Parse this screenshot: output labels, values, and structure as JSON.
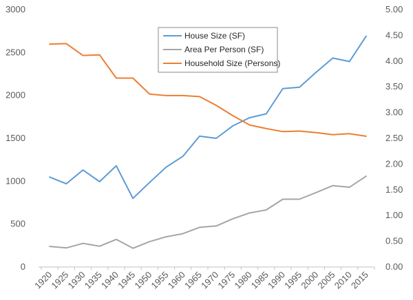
{
  "chart_data": {
    "type": "line",
    "title": "",
    "xlabel": "",
    "ylabel": "",
    "y2label": "",
    "x": [
      "1920",
      "1925",
      "1930",
      "1935",
      "1940",
      "1945",
      "1950",
      "1955",
      "1960",
      "1965",
      "1970",
      "1975",
      "1980",
      "1985",
      "1990",
      "1995",
      "2000",
      "2005",
      "2010",
      "2015"
    ],
    "ylim": [
      0,
      3000
    ],
    "y_ticks": [
      "0",
      "500",
      "1000",
      "1500",
      "2000",
      "2500",
      "3000"
    ],
    "y2lim": [
      0,
      5
    ],
    "y2_ticks": [
      "0.00",
      "0.50",
      "1.00",
      "1.50",
      "2.00",
      "2.50",
      "3.00",
      "3.50",
      "4.00",
      "4.50",
      "5.00"
    ],
    "grid": false,
    "legend_position": "top-center",
    "series": [
      {
        "name": "House Size (SF)",
        "axis": "left",
        "color": "#5B9BD5",
        "values": [
          1048,
          970,
          1130,
          995,
          1180,
          800,
          985,
          1165,
          1290,
          1525,
          1500,
          1645,
          1740,
          1785,
          2080,
          2095,
          2270,
          2435,
          2395,
          2690
        ]
      },
      {
        "name": "Area Per Person (SF)",
        "axis": "left",
        "color": "#A5A5A5",
        "values": [
          240,
          222,
          275,
          242,
          322,
          218,
          295,
          352,
          388,
          462,
          478,
          562,
          630,
          665,
          790,
          790,
          868,
          948,
          930,
          1058
        ]
      },
      {
        "name": "Household Size (Persons)",
        "axis": "right",
        "color": "#ED7D31",
        "values": [
          4.33,
          4.34,
          4.11,
          4.12,
          3.67,
          3.67,
          3.36,
          3.33,
          3.33,
          3.31,
          3.14,
          2.94,
          2.76,
          2.69,
          2.63,
          2.64,
          2.61,
          2.57,
          2.59,
          2.54
        ]
      }
    ]
  }
}
